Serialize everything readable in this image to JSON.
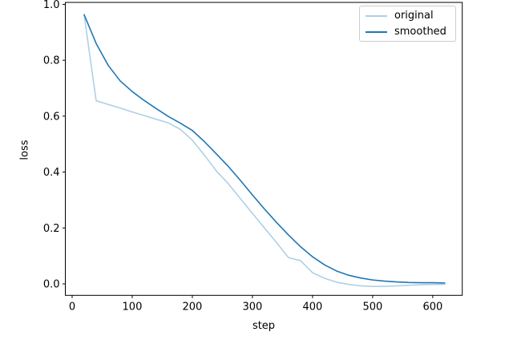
{
  "chart_data": {
    "type": "line",
    "xlabel": "step",
    "ylabel": "loss",
    "xlim": [
      -11.3,
      649.1
    ],
    "ylim": [
      -0.041,
      1.007
    ],
    "grid": false,
    "axis_color": "#000000",
    "xticks": {
      "values": [
        0,
        100,
        200,
        300,
        400,
        500,
        600
      ],
      "labels": [
        "0",
        "100",
        "200",
        "300",
        "400",
        "500",
        "600"
      ]
    },
    "yticks": {
      "values": [
        0.0,
        0.2,
        0.4,
        0.6,
        0.8,
        1.0
      ],
      "labels": [
        "0.0",
        "0.2",
        "0.4",
        "0.6",
        "0.8",
        "1.0"
      ]
    },
    "legend": {
      "position": "upper right",
      "entries": [
        {
          "label": "original",
          "color": "#aed0e6"
        },
        {
          "label": "smoothed",
          "color": "#1f77b4"
        }
      ]
    },
    "x": [
      20,
      40,
      60,
      80,
      100,
      120,
      140,
      160,
      180,
      200,
      220,
      240,
      260,
      280,
      300,
      320,
      340,
      360,
      380,
      400,
      420,
      440,
      460,
      480,
      500,
      520,
      540,
      560,
      580,
      600,
      620
    ],
    "series": [
      {
        "name": "original",
        "color": "#aed0e6",
        "linewidth": 1.6,
        "values": [
          0.963,
          0.655,
          0.642,
          0.629,
          0.615,
          0.602,
          0.589,
          0.576,
          0.553,
          0.514,
          0.461,
          0.404,
          0.358,
          0.305,
          0.252,
          0.2,
          0.148,
          0.094,
          0.083,
          0.04,
          0.02,
          0.006,
          -0.002,
          -0.007,
          -0.009,
          -0.009,
          -0.007,
          -0.005,
          -0.003,
          -0.002,
          -0.002
        ]
      },
      {
        "name": "smoothed",
        "color": "#1f77b4",
        "linewidth": 1.6,
        "values": [
          0.963,
          0.86,
          0.782,
          0.726,
          0.688,
          0.656,
          0.627,
          0.599,
          0.575,
          0.549,
          0.509,
          0.465,
          0.42,
          0.37,
          0.318,
          0.268,
          0.22,
          0.175,
          0.133,
          0.097,
          0.068,
          0.046,
          0.031,
          0.021,
          0.014,
          0.01,
          0.007,
          0.005,
          0.004,
          0.004,
          0.003
        ]
      }
    ]
  }
}
